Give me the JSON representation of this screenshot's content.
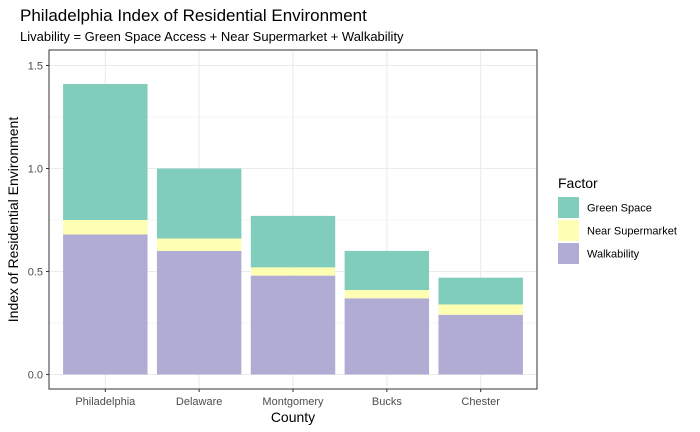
{
  "chart_data": {
    "type": "bar",
    "stacked": true,
    "title": "Philadelphia Index of Residential Environment",
    "subtitle": "Livability = Green Space Access + Near Supermarket + Walkability",
    "xlabel": "County",
    "ylabel": "Index of Residential Environment",
    "ylim": [
      0,
      1.57
    ],
    "yticks": [
      "0.0",
      "0.5",
      "1.0",
      "1.5"
    ],
    "grid": true,
    "legend_position": "right",
    "legend_title": "Factor",
    "categories": [
      "Philadelphia",
      "Delaware",
      "Montgomery",
      "Bucks",
      "Chester"
    ],
    "highlight_category": "Philadelphia",
    "highlight_color": "#ff0000",
    "series": [
      {
        "name": "Walkability",
        "color": "#b1acd3",
        "values": [
          0.68,
          0.6,
          0.48,
          0.37,
          0.29
        ]
      },
      {
        "name": "Near Supermarket",
        "color": "#ffffb3",
        "values": [
          0.07,
          0.06,
          0.04,
          0.04,
          0.05
        ]
      },
      {
        "name": "Green Space",
        "color": "#80cdbc",
        "values": [
          0.66,
          0.34,
          0.25,
          0.19,
          0.13
        ]
      }
    ],
    "legend_order": [
      "Green Space",
      "Near Supermarket",
      "Walkability"
    ]
  }
}
